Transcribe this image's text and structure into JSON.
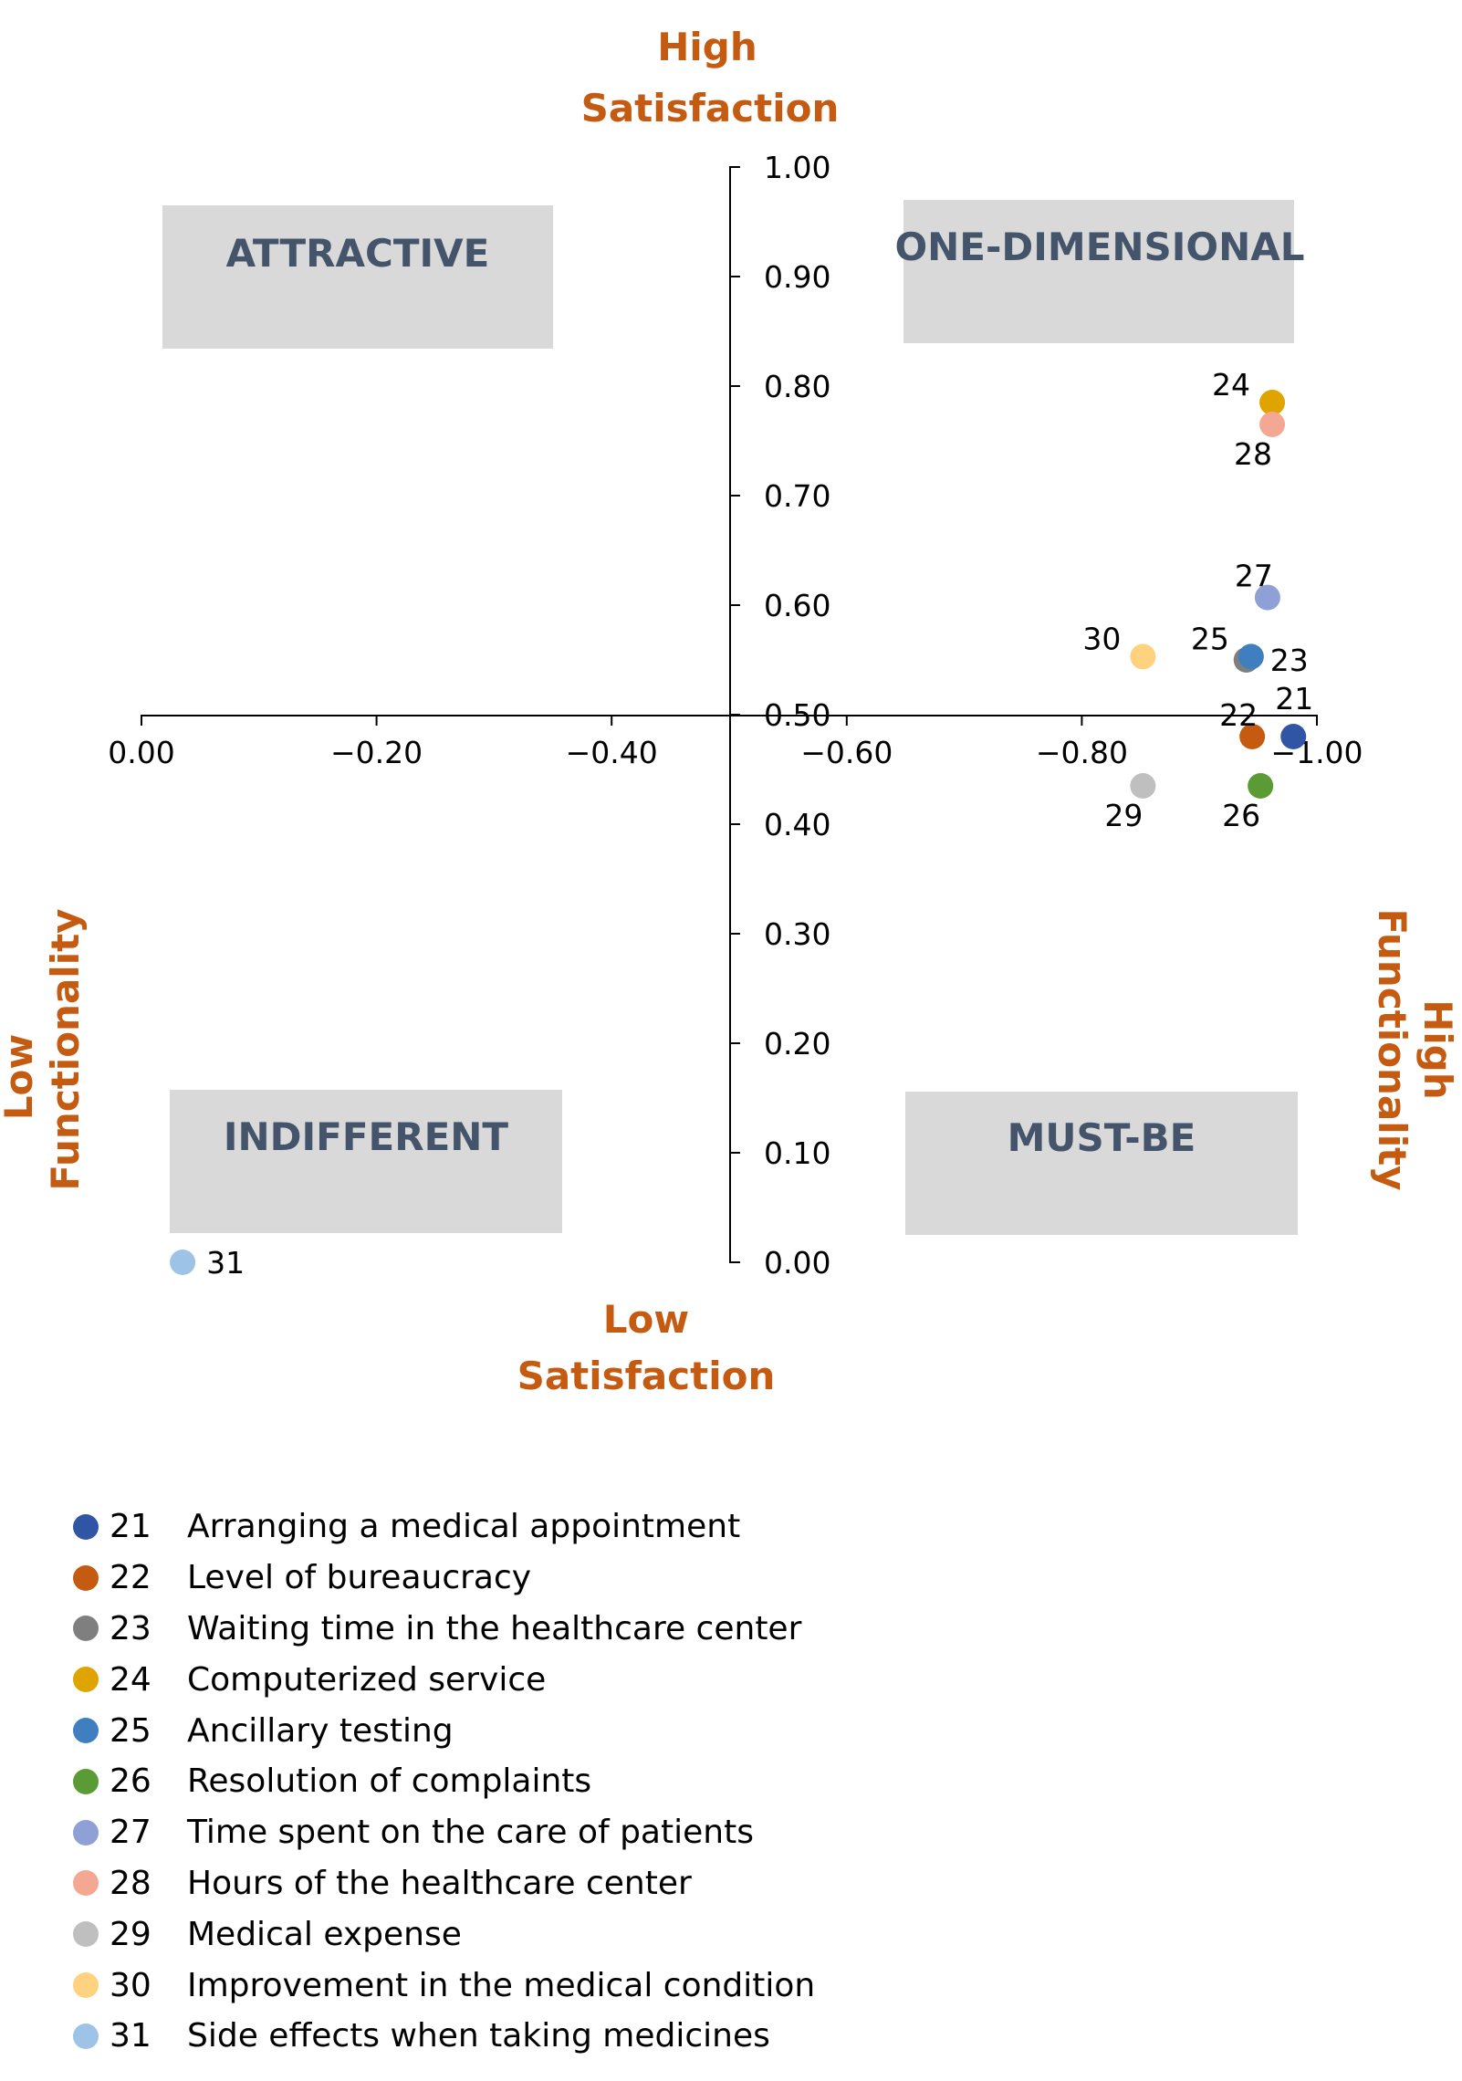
{
  "chart_data": {
    "type": "scatter",
    "title": "",
    "axis_titles": {
      "top": [
        "High",
        "Satisfaction"
      ],
      "bottom": [
        "Low",
        "Satisfaction"
      ],
      "left": [
        "Low",
        "Functionality"
      ],
      "right": [
        "High",
        "Functionality"
      ]
    },
    "x_axis": {
      "range": [
        0.0,
        -1.0
      ],
      "ticks": [
        "0.00",
        "−0.20",
        "−0.40",
        "−0.60",
        "−0.80",
        "−1.00"
      ],
      "crosses_y_at": 0.5
    },
    "y_axis": {
      "range": [
        0.0,
        1.0
      ],
      "ticks": [
        "0.00",
        "0.10",
        "0.20",
        "0.30",
        "0.40",
        "0.50",
        "0.60",
        "0.70",
        "0.80",
        "0.90",
        "1.00"
      ],
      "crosses_x_at": -0.5
    },
    "quadrants": [
      {
        "label": "ATTRACTIVE",
        "position": "top-left"
      },
      {
        "label": "ONE-DIMENSIONAL",
        "position": "top-right"
      },
      {
        "label": "INDIFFERENT",
        "position": "bottom-left"
      },
      {
        "label": "MUST-BE",
        "position": "bottom-right"
      }
    ],
    "points": [
      {
        "id": "21",
        "name": "Arranging a medical appointment",
        "x": -0.98,
        "y": 0.48,
        "color": "#2F55A4",
        "label_side": "above-right"
      },
      {
        "id": "22",
        "name": "Level of bureaucracy",
        "x": -0.945,
        "y": 0.48,
        "color": "#C55A11",
        "label_side": "above-left"
      },
      {
        "id": "23",
        "name": "Waiting time in the healthcare center",
        "x": -0.94,
        "y": 0.55,
        "color": "#7F7F7F",
        "label_side": "right"
      },
      {
        "id": "24",
        "name": "Computerized service",
        "x": -0.962,
        "y": 0.785,
        "color": "#E0A400",
        "label_side": "left"
      },
      {
        "id": "25",
        "name": "Ancillary testing",
        "x": -0.944,
        "y": 0.553,
        "color": "#3F7FBF",
        "label_side": "left"
      },
      {
        "id": "26",
        "name": "Resolution of complaints",
        "x": -0.952,
        "y": 0.435,
        "color": "#5A9B35",
        "label_side": "below-left"
      },
      {
        "id": "27",
        "name": "Time spent on the care of patients",
        "x": -0.958,
        "y": 0.607,
        "color": "#8FA0D6",
        "label_side": "above-left"
      },
      {
        "id": "28",
        "name": "Hours of the healthcare center",
        "x": -0.962,
        "y": 0.765,
        "color": "#F4A894",
        "label_side": "below-left"
      },
      {
        "id": "29",
        "name": "Medical expense",
        "x": -0.852,
        "y": 0.435,
        "color": "#BFBFBF",
        "label_side": "below-left"
      },
      {
        "id": "30",
        "name": "Improvement in the medical condition",
        "x": -0.852,
        "y": 0.553,
        "color": "#FFD27F",
        "label_side": "left"
      },
      {
        "id": "31",
        "name": "Side effects when taking medicines",
        "x": -0.035,
        "y": 0.0,
        "color": "#9DC3E6",
        "label_side": "right"
      }
    ]
  }
}
